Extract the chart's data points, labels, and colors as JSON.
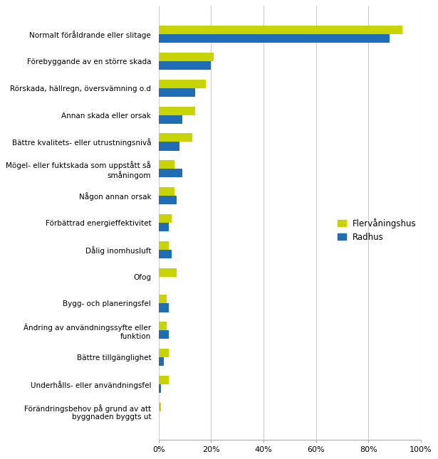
{
  "categories": [
    "Normalt föråldrande eller slitage",
    "Förebyggande av en större skada",
    "Rörskada, hällregn, översvämning o.d",
    "Annan skada eller orsak",
    "Bättre kvalitets- eller utrustningsnivå",
    "Mögel- eller fuktskada som uppstått så\nsmåningom",
    "Någon annan orsak",
    "Förbättrad energieffektivitet",
    "Dålig inomhusluft",
    "Ofog",
    "Bygg- och planeringsfel",
    "Ändring av användningssyfte eller\nfunktion",
    "Bättre tillgänglighet",
    "Underhålls- eller användningsfel",
    "Förändringsbehov på grund av att\nbyggnaden byggts ut"
  ],
  "flervåningshus": [
    93,
    21,
    18,
    14,
    13,
    6,
    6,
    5,
    4,
    7,
    3,
    3,
    4,
    4,
    1
  ],
  "radhus": [
    88,
    20,
    14,
    9,
    8,
    9,
    7,
    4,
    5,
    0,
    4,
    4,
    2,
    1,
    0
  ],
  "color_flervåningshus": "#c8d400",
  "color_radhus": "#1f6db5",
  "legend_flervåningshus": "Flervåningshus",
  "legend_radhus": "Radhus",
  "xlim": [
    0,
    100
  ],
  "xticks": [
    0,
    20,
    40,
    60,
    80,
    100
  ],
  "xticklabels": [
    "0%",
    "20%",
    "40%",
    "60%",
    "80%",
    "100%"
  ],
  "bar_height": 0.32,
  "figsize": [
    6.15,
    6.45
  ],
  "dpi": 100,
  "background_color": "#ffffff",
  "grid_color": "#cccccc",
  "label_fontsize": 7.5,
  "tick_fontsize": 8,
  "legend_fontsize": 8.5
}
